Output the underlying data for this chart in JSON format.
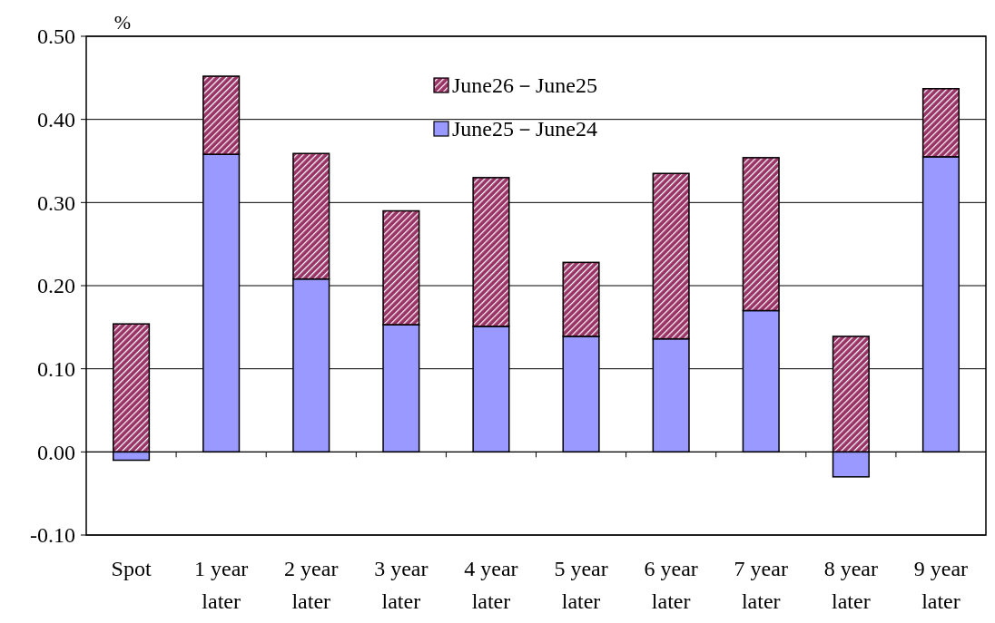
{
  "chart_data": {
    "type": "bar",
    "stacked": true,
    "ylabel": "%",
    "categories": [
      "Spot",
      "1 year later",
      "2 year later",
      "3 year later",
      "4 year later",
      "5 year later",
      "6 year later",
      "7 year later",
      "8 year later",
      "9 year later"
    ],
    "series": [
      {
        "name": "June25－June24",
        "color": "#9999ff",
        "values": [
          -0.01,
          0.358,
          0.208,
          0.153,
          0.151,
          0.139,
          0.136,
          0.17,
          -0.03,
          0.355
        ]
      },
      {
        "name": "June26－June25",
        "color": "#993366",
        "values": [
          0.154,
          0.094,
          0.151,
          0.137,
          0.179,
          0.089,
          0.199,
          0.184,
          0.139,
          0.082
        ]
      }
    ],
    "ylim": [
      -0.1,
      0.5
    ],
    "yticks": [
      {
        "value": -0.1,
        "label": "-0.10"
      },
      {
        "value": 0,
        "label": "0.00"
      },
      {
        "value": 0.1,
        "label": "0.10"
      },
      {
        "value": 0.2,
        "label": "0.20"
      },
      {
        "value": 0.3,
        "label": "0.30"
      },
      {
        "value": 0.4,
        "label": "0.40"
      },
      {
        "value": 0.5,
        "label": "0.50"
      }
    ],
    "grid": "y",
    "legend": "top"
  }
}
